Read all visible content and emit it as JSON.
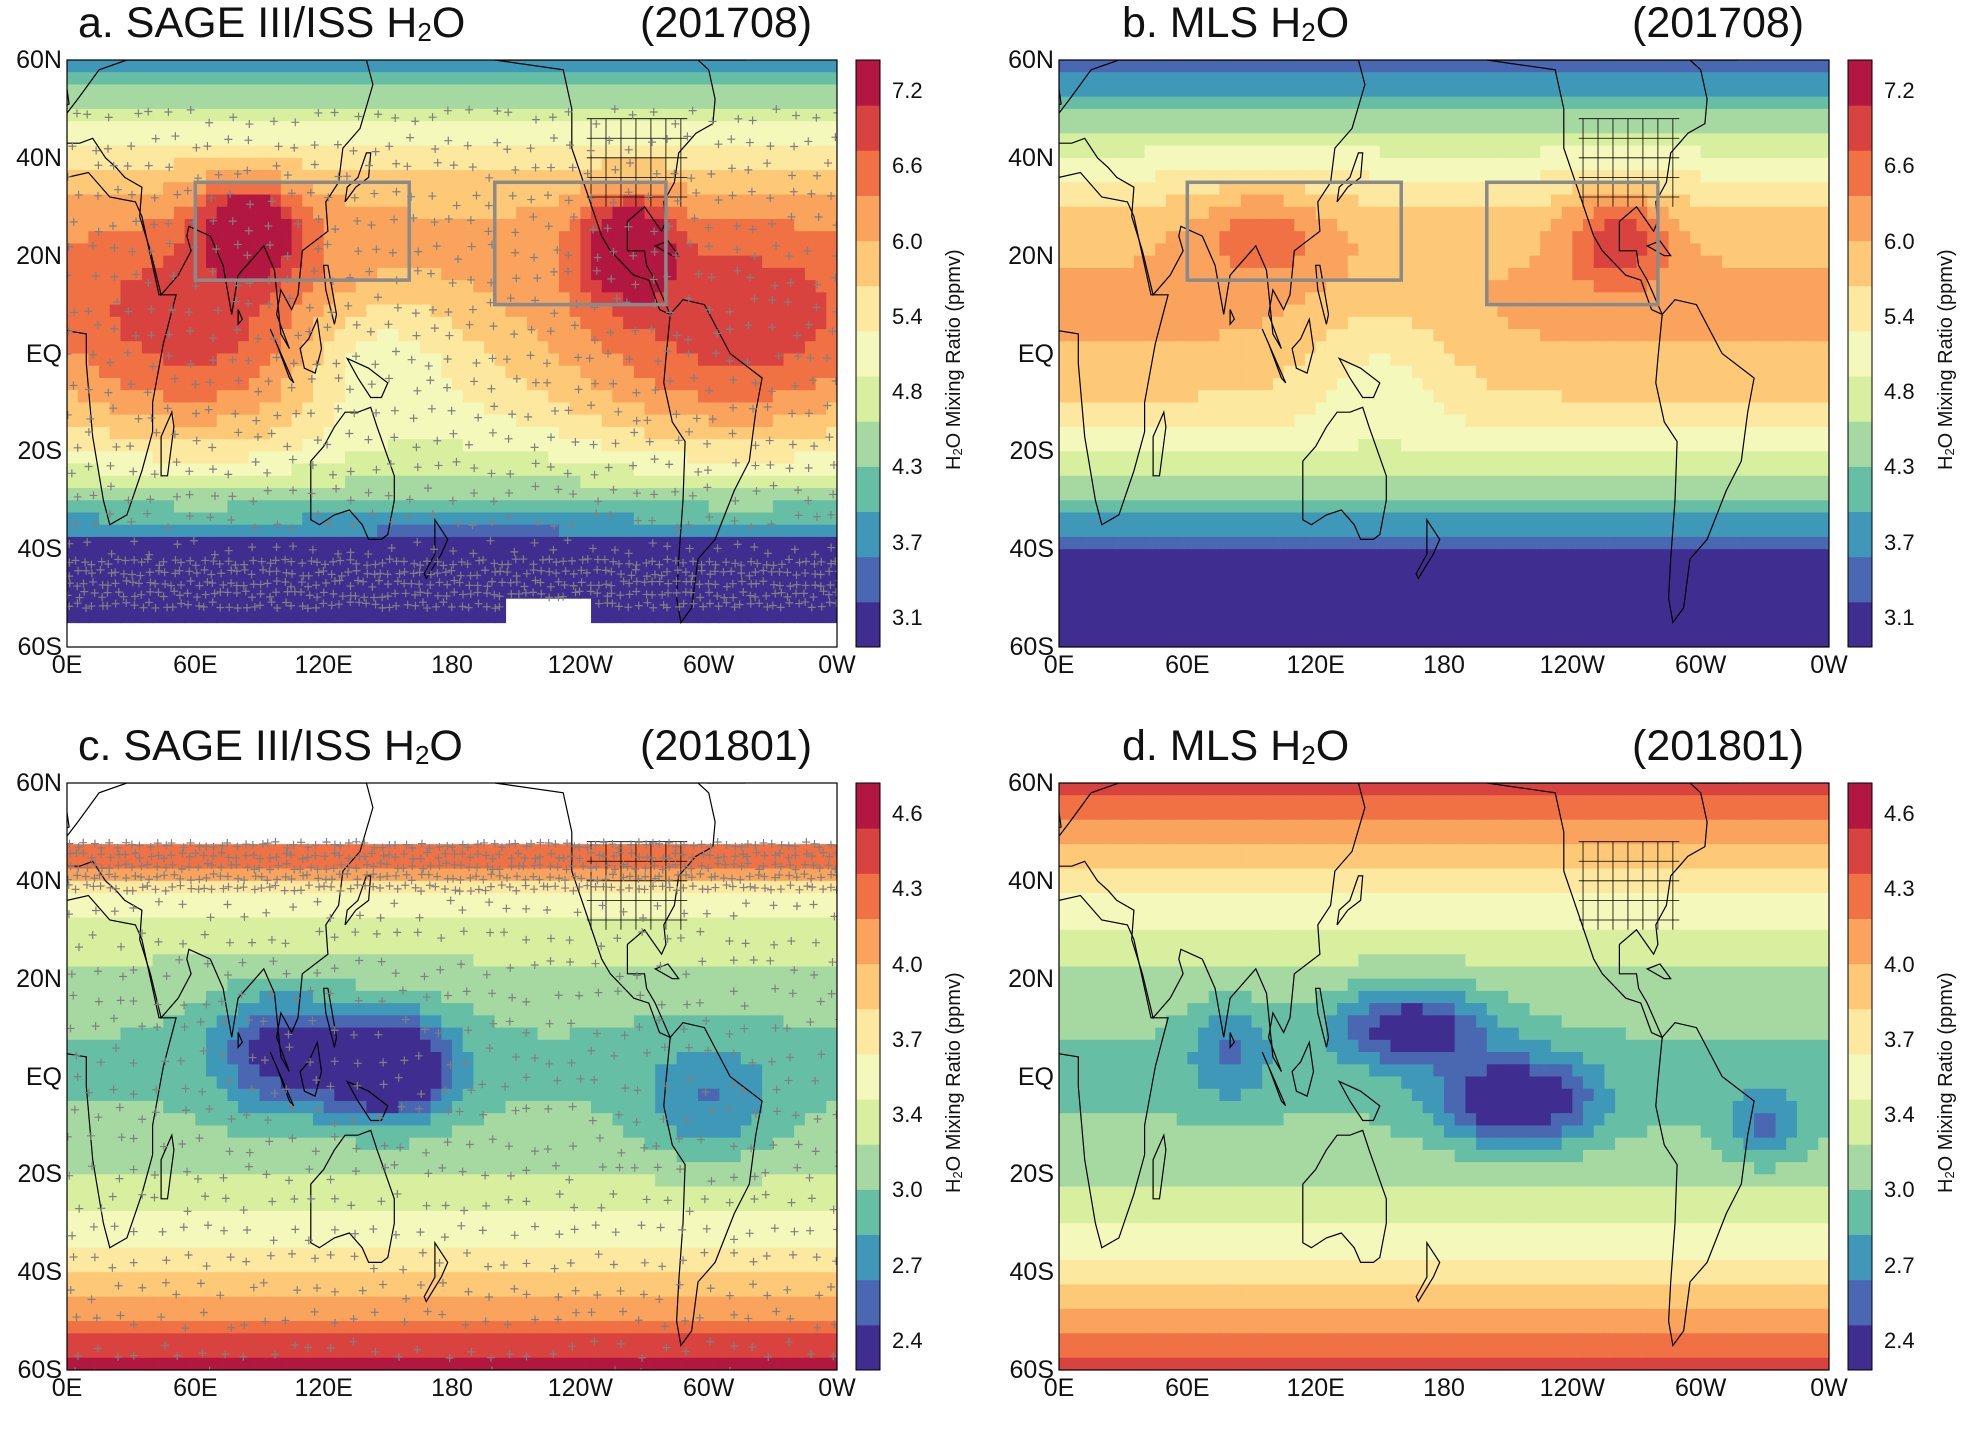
{
  "panels": [
    {
      "id": "a",
      "title": {
        "prefix": "a.  SAGE III/ISS H",
        "sub": "2",
        "suffix": "O"
      },
      "date": "(201708)",
      "instrument": "SAGE III/ISS",
      "month": "201708",
      "colorbar": {
        "ticks": [
          "7.2",
          "6.6",
          "6.0",
          "5.4",
          "4.8",
          "4.3",
          "3.7",
          "3.1"
        ],
        "label_prefix": "H",
        "label_sub": "2",
        "label_suffix": "O Mixing Ratio  (ppmv)"
      },
      "has_obs_markers": true,
      "boxes": true,
      "data_gap": "south-pacific"
    },
    {
      "id": "b",
      "title": {
        "prefix": "b.  MLS H",
        "sub": "2",
        "suffix": "O"
      },
      "date": "(201708)",
      "instrument": "MLS",
      "month": "201708",
      "colorbar": {
        "ticks": [
          "7.2",
          "6.6",
          "6.0",
          "5.4",
          "4.8",
          "4.3",
          "3.7",
          "3.1"
        ],
        "label_prefix": "H",
        "label_sub": "2",
        "label_suffix": "O Mixing Ratio  (ppmv)"
      },
      "has_obs_markers": false,
      "boxes": true,
      "data_gap": "none"
    },
    {
      "id": "c",
      "title": {
        "prefix": "c.  SAGE III/ISS H",
        "sub": "2",
        "suffix": "O"
      },
      "date": "(201801)",
      "instrument": "SAGE III/ISS",
      "month": "201801",
      "colorbar": {
        "ticks": [
          "4.6",
          "4.3",
          "4.0",
          "3.7",
          "3.4",
          "3.0",
          "2.7",
          "2.4"
        ],
        "label_prefix": "H",
        "label_sub": "2",
        "label_suffix": "O Mixing Ratio  (ppmv)"
      },
      "has_obs_markers": true,
      "boxes": false,
      "data_gap": "north-of-50N"
    },
    {
      "id": "d",
      "title": {
        "prefix": "d.  MLS H",
        "sub": "2",
        "suffix": "O"
      },
      "date": "(201801)",
      "instrument": "MLS",
      "month": "201801",
      "colorbar": {
        "ticks": [
          "4.6",
          "4.3",
          "4.0",
          "3.7",
          "3.4",
          "3.0",
          "2.7",
          "2.4"
        ],
        "label_prefix": "H",
        "label_sub": "2",
        "label_suffix": "O Mixing Ratio  (ppmv)"
      },
      "has_obs_markers": false,
      "boxes": false,
      "data_gap": "none"
    }
  ],
  "lat_labels": [
    "60N",
    "40N",
    "20N",
    "EQ",
    "20S",
    "40S",
    "60S"
  ],
  "lon_labels": [
    "0E",
    "60E",
    "120E",
    "180",
    "120W",
    "60W",
    "0W"
  ],
  "colormap": [
    "#3f2e8f",
    "#4a67b2",
    "#3f98b8",
    "#66bfa5",
    "#a6d9a1",
    "#d8ef9f",
    "#f4f8ba",
    "#fde8a0",
    "#fdc977",
    "#f9a35d",
    "#ef7144",
    "#d9433f",
    "#b21741"
  ],
  "colors": {
    "box": "#8a8a8a",
    "marker": "#808080",
    "coast": "#000000",
    "frame": "#000000"
  }
}
